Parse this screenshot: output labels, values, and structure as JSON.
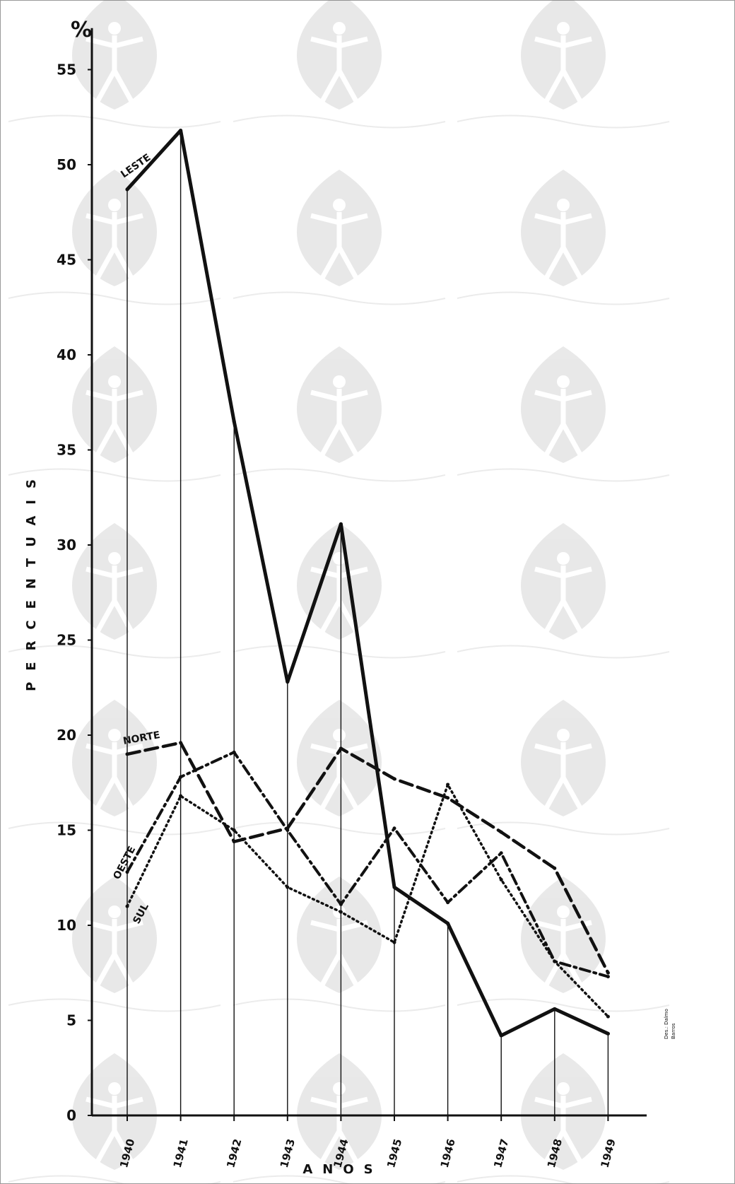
{
  "chart_data": {
    "type": "line",
    "ylabel": "PERCENTUAIS",
    "xlabel": "ANOS",
    "y_unit": "%",
    "ylim": [
      0,
      57
    ],
    "yticks": [
      0,
      5,
      10,
      15,
      20,
      25,
      30,
      35,
      40,
      45,
      50,
      55
    ],
    "categories": [
      "1940",
      "1941",
      "1942",
      "1943",
      "1944",
      "1945",
      "1946",
      "1947",
      "1948",
      "1949"
    ],
    "grid": "vertical lines at each year",
    "legend": "inline labels on lines",
    "series": [
      {
        "name": "LESTE",
        "style": "solid",
        "values": [
          48.7,
          51.8,
          36.5,
          22.8,
          31.1,
          12.0,
          10.1,
          4.2,
          5.6,
          4.3
        ]
      },
      {
        "name": "NORTE",
        "style": "dashed",
        "values": [
          19.0,
          19.6,
          14.4,
          15.1,
          19.3,
          17.7,
          16.7,
          14.9,
          13.0,
          7.5
        ]
      },
      {
        "name": "OESTE",
        "style": "dash-dot",
        "values": [
          12.8,
          17.8,
          19.1,
          15.0,
          11.1,
          15.1,
          11.2,
          13.8,
          8.1,
          7.3
        ]
      },
      {
        "name": "SUL",
        "style": "dotted",
        "values": [
          11.0,
          16.8,
          15.0,
          12.0,
          10.7,
          9.1,
          17.4,
          12.4,
          8.1,
          5.2
        ]
      }
    ],
    "credit": [
      "Des.: Dalmo",
      "Barros"
    ]
  }
}
